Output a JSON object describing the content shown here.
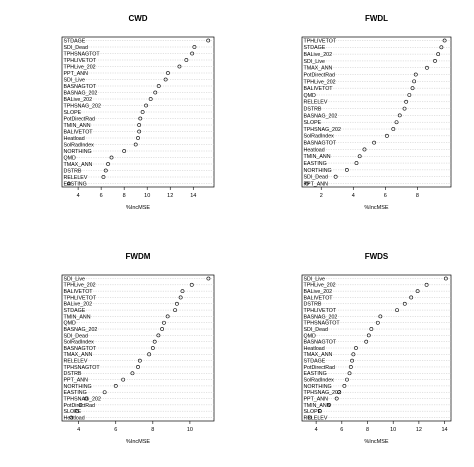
{
  "chart_data": [
    {
      "type": "scatter",
      "title": "CWD",
      "xlabel": "%IncMSE",
      "ylabel": "",
      "xlim": [
        2.6,
        15.8
      ],
      "xticks": [
        4,
        6,
        8,
        10,
        12,
        14
      ],
      "grid": "horizontal-dotted",
      "categories": [
        "STDAGE",
        "SDI_Dead",
        "TPHSNAGTOT",
        "TPHLIVETOT",
        "TPHLive_202",
        "PPT_ANN",
        "SDI_Live",
        "BASNAGTOT",
        "BASNAG_202",
        "BALive_202",
        "TPHSNAG_202",
        "SLOPE",
        "PotDirectRad",
        "TMIN_ANN",
        "BALIVETOT",
        "Heatload",
        "SolRadIndex",
        "NORTHING",
        "QMD",
        "TMAX_ANN",
        "DSTRB",
        "RELELEV",
        "EASTING"
      ],
      "values": [
        15.3,
        14.1,
        13.9,
        13.4,
        12.8,
        11.8,
        11.6,
        11.0,
        10.7,
        10.3,
        9.9,
        9.6,
        9.4,
        9.3,
        9.3,
        9.2,
        9.0,
        8.0,
        6.9,
        6.6,
        6.4,
        6.2,
        3.2
      ]
    },
    {
      "type": "scatter",
      "title": "FWDL",
      "xlabel": "%IncMSE",
      "ylabel": "",
      "xlim": [
        0.8,
        10.1
      ],
      "xticks": [
        2,
        4,
        6,
        8
      ],
      "grid": "horizontal-dotted",
      "categories": [
        "TPHLIVETOT",
        "STDAGE",
        "BALive_202",
        "SDI_Live",
        "TMAX_ANN",
        "PotDirectRad",
        "TPHLive_202",
        "BALIVETOT",
        "QMD",
        "RELELEV",
        "DSTRB",
        "BASNAG_202",
        "SLOPE",
        "TPHSNAG_202",
        "SolRadIndex",
        "BASNAGTOT",
        "Heatload",
        "TMIN_ANN",
        "EASTING",
        "NORTHING",
        "SDI_Dead",
        "PPT_ANN"
      ],
      "values": [
        9.7,
        9.5,
        9.3,
        9.1,
        8.6,
        7.9,
        7.8,
        7.7,
        7.5,
        7.3,
        7.2,
        6.9,
        6.7,
        6.5,
        6.1,
        5.3,
        4.7,
        4.4,
        4.2,
        3.6,
        2.9,
        1.1
      ]
    },
    {
      "type": "scatter",
      "title": "FWDM",
      "xlabel": "%IncMSE",
      "ylabel": "",
      "xlim": [
        3.1,
        11.3
      ],
      "xticks": [
        4,
        6,
        8,
        10
      ],
      "grid": "horizontal-dotted",
      "categories": [
        "SDI_Live",
        "TPHLive_202",
        "BALIVETOT",
        "TPHLIVETOT",
        "BALive_202",
        "STDAGE",
        "TMIN_ANN",
        "QMD",
        "BASNAG_202",
        "SDI_Dead",
        "SolRadIndex",
        "BASNAGTOT",
        "TMAX_ANN",
        "RELELEV",
        "TPHSNAGTOT",
        "DSTRB",
        "PPT_ANN",
        "NORTHING",
        "EASTING",
        "TPHSNAG_202",
        "PotDirectRad",
        "SLOPE",
        "Heatload"
      ],
      "values": [
        11.0,
        10.1,
        9.6,
        9.5,
        9.3,
        9.2,
        8.8,
        8.6,
        8.5,
        8.3,
        8.1,
        8.0,
        7.8,
        7.3,
        7.2,
        6.9,
        6.4,
        6.0,
        5.4,
        4.4,
        4.1,
        3.9,
        3.6
      ]
    },
    {
      "type": "scatter",
      "title": "FWDS",
      "xlabel": "%IncMSE",
      "ylabel": "",
      "xlim": [
        2.9,
        14.5
      ],
      "xticks": [
        4,
        6,
        8,
        10,
        12,
        14
      ],
      "grid": "horizontal-dotted",
      "categories": [
        "SDI_Live",
        "TPHLive_202",
        "BALive_202",
        "BALIVETOT",
        "DSTRB",
        "TPHLIVETOT",
        "BASNAG_202",
        "TPHSNAGTOT",
        "SDI_Dead",
        "QMD",
        "BASNAGTOT",
        "Heatload",
        "TMAX_ANN",
        "STDAGE",
        "PotDirectRad",
        "EASTING",
        "SolRadIndex",
        "NORTHING",
        "TPHSNAG_202",
        "PPT_ANN",
        "TMIN_ANN",
        "SLOPE",
        "RELELEV"
      ],
      "values": [
        14.1,
        12.6,
        11.9,
        11.4,
        10.9,
        10.3,
        9.0,
        8.8,
        8.3,
        8.1,
        7.9,
        7.1,
        6.9,
        6.8,
        6.7,
        6.6,
        6.4,
        6.2,
        5.8,
        5.6,
        5.0,
        4.3,
        3.5
      ]
    }
  ]
}
